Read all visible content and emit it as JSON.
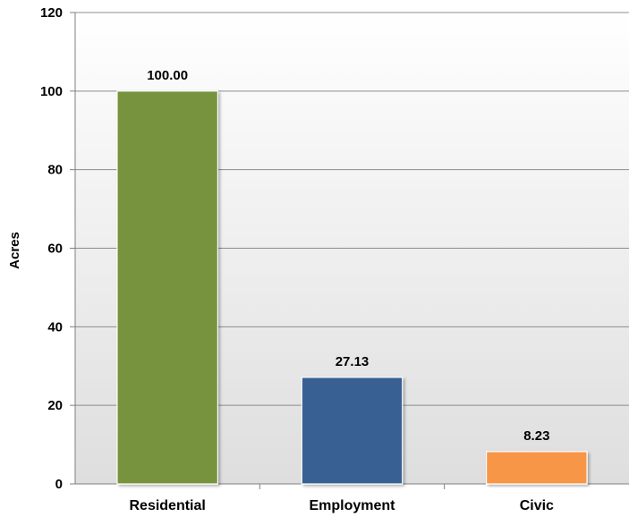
{
  "chart_data": {
    "type": "bar",
    "title": "",
    "xlabel": "",
    "ylabel": "Acres",
    "ylim": [
      0,
      120
    ],
    "yticks": [
      0,
      20,
      40,
      60,
      80,
      100,
      120
    ],
    "categories": [
      "Residential",
      "Employment",
      "Civic"
    ],
    "values": [
      100.0,
      27.13,
      8.23
    ],
    "data_labels": [
      "100.00",
      "27.13",
      "8.23"
    ],
    "colors": [
      "#77933c",
      "#376092",
      "#f79646"
    ],
    "grid": true,
    "legend": "none"
  },
  "colors": {
    "plot_background_top": "#ffffff",
    "plot_background_bottom": "#dedede",
    "gridline": "#8c8c8c"
  }
}
